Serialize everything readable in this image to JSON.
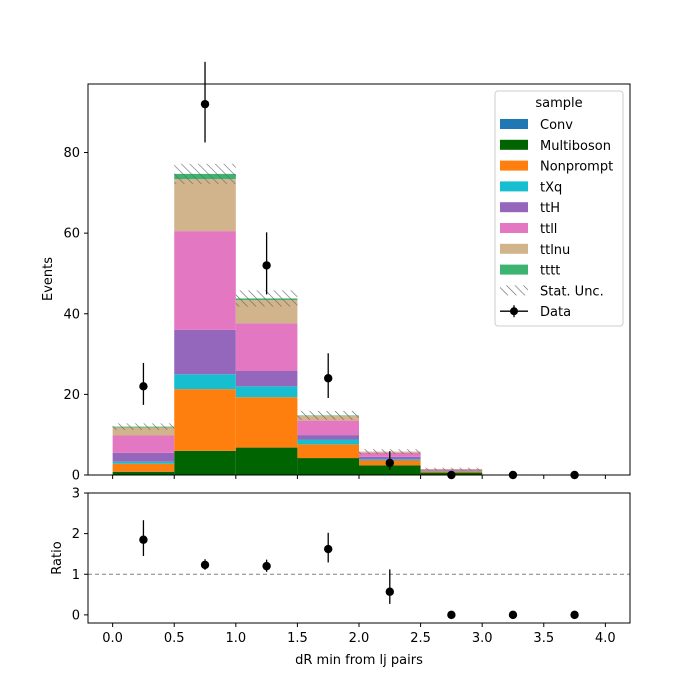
{
  "chart_data": [
    {
      "type": "bar",
      "stacked": true,
      "ylabel": "Events",
      "ylim": [
        0,
        97
      ],
      "yticks": [
        0,
        20,
        40,
        60,
        80
      ],
      "bin_edges": [
        0.0,
        0.5,
        1.0,
        1.5,
        2.0,
        2.5,
        3.0,
        3.5,
        4.0
      ],
      "legend": {
        "title": "sample",
        "placement": "top-right",
        "entries": [
          "Conv",
          "Multiboson",
          "Nonprompt",
          "tXq",
          "ttH",
          "ttll",
          "ttlnu",
          "tttt",
          "Stat. Unc.",
          "Data"
        ]
      },
      "series": [
        {
          "name": "Conv",
          "color": "#1f77b4",
          "values": [
            0.0,
            0.0,
            0.0,
            0.0,
            0.0,
            0.0,
            0.0,
            0.0
          ]
        },
        {
          "name": "Multiboson",
          "color": "#006400",
          "values": [
            0.8,
            6.0,
            6.8,
            4.2,
            2.4,
            0.6,
            0.0,
            0.0
          ]
        },
        {
          "name": "Nonprompt",
          "color": "#ff7f0e",
          "values": [
            2.0,
            15.3,
            12.5,
            3.4,
            1.2,
            0.3,
            0.0,
            0.0
          ]
        },
        {
          "name": "tXq",
          "color": "#17becf",
          "values": [
            0.5,
            3.7,
            2.7,
            1.2,
            0.3,
            0.1,
            0.0,
            0.0
          ]
        },
        {
          "name": "ttH",
          "color": "#9467bd",
          "values": [
            2.2,
            11.0,
            3.8,
            1.1,
            0.6,
            0.2,
            0.05,
            0.0
          ]
        },
        {
          "name": "ttll",
          "color": "#e377c2",
          "values": [
            4.3,
            24.5,
            11.8,
            3.6,
            1.0,
            0.2,
            0.05,
            0.0
          ]
        },
        {
          "name": "ttlnu",
          "color": "#d2b48c",
          "values": [
            2.0,
            12.9,
            5.8,
            1.2,
            0.3,
            0.1,
            0.0,
            0.0
          ]
        },
        {
          "name": "tttt",
          "color": "#3cb371",
          "values": [
            0.2,
            1.3,
            0.4,
            0.1,
            0.0,
            0.0,
            0.0,
            0.0
          ]
        }
      ],
      "stat_unc": [
        0.8,
        2.5,
        2.0,
        1.1,
        0.6,
        0.3,
        0.05,
        0.0
      ],
      "data": {
        "name": "Data",
        "x": [
          0.25,
          0.75,
          1.25,
          1.75,
          2.25,
          2.75,
          3.25,
          3.75
        ],
        "y": [
          22,
          92,
          52,
          24,
          3,
          0,
          0,
          0
        ],
        "yerr_up": [
          5.8,
          10.5,
          8.2,
          6.2,
          2.9,
          0.0,
          0.0,
          0.0
        ],
        "yerr_down": [
          4.6,
          9.5,
          7.2,
          4.9,
          1.7,
          0.0,
          0.0,
          0.0
        ]
      }
    },
    {
      "type": "scatter",
      "xlabel": "dR min from lj pairs",
      "ylabel": "Ratio",
      "xlim": [
        -0.2,
        4.2
      ],
      "xticks": [
        0.0,
        0.5,
        1.0,
        1.5,
        2.0,
        2.5,
        3.0,
        3.5,
        4.0
      ],
      "ylim": [
        -0.2,
        3.0
      ],
      "yticks": [
        0,
        1,
        2,
        3
      ],
      "reference_line": 1,
      "x": [
        0.25,
        0.75,
        1.25,
        1.75,
        2.25,
        2.75,
        3.25,
        3.75
      ],
      "y": [
        1.85,
        1.23,
        1.2,
        1.62,
        0.57,
        0.0,
        0.0,
        0.0
      ],
      "yerr_up": [
        0.48,
        0.14,
        0.16,
        0.4,
        0.55,
        0.0,
        0.0,
        0.0
      ],
      "yerr_down": [
        0.4,
        0.12,
        0.14,
        0.33,
        0.3,
        0.0,
        0.0,
        0.0
      ]
    }
  ]
}
